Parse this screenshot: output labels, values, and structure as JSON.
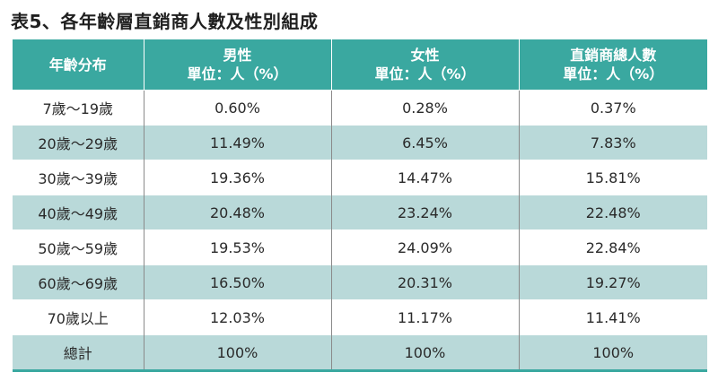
{
  "title": "表5、各年齡層直銷商人數及性別組成",
  "header": {
    "col0": "年齡分布",
    "col1_line1": "男性",
    "col1_line2": "單位：人（%）",
    "col2_line1": "女性",
    "col2_line2": "單位：人（%）",
    "col3_line1": "直銷商總人數",
    "col3_line2": "單位：人（%）"
  },
  "rows": [
    {
      "age": "7歲～19歲",
      "male": "0.60%",
      "female": "0.28%",
      "total": "0.37%"
    },
    {
      "age": "20歲～29歲",
      "male": "11.49%",
      "female": "6.45%",
      "total": "7.83%"
    },
    {
      "age": "30歲～39歲",
      "male": "19.36%",
      "female": "14.47%",
      "total": "15.81%"
    },
    {
      "age": "40歲～49歲",
      "male": "20.48%",
      "female": "23.24%",
      "total": "22.48%"
    },
    {
      "age": "50歲～59歲",
      "male": "19.53%",
      "female": "24.09%",
      "total": "22.84%"
    },
    {
      "age": "60歲～69歲",
      "male": "16.50%",
      "female": "20.31%",
      "total": "19.27%"
    },
    {
      "age": "70歲以上",
      "male": "12.03%",
      "female": "11.17%",
      "total": "11.41%"
    },
    {
      "age": "總計",
      "male": "100%",
      "female": "100%",
      "total": "100%"
    }
  ],
  "colors": {
    "header_bg": "#3aa8a0",
    "shade_bg": "#b9d9d9"
  }
}
